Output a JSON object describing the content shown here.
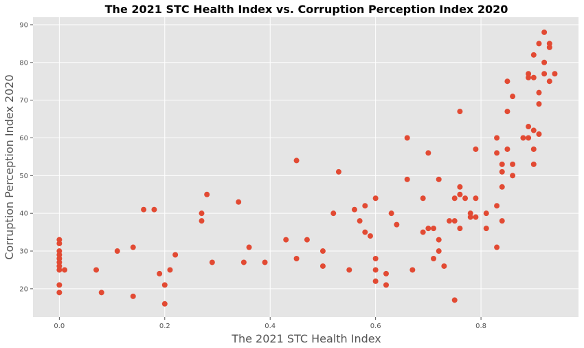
{
  "chart_data": {
    "type": "scatter",
    "title": "The 2021 STC Health Index vs. Corruption Perception Index 2020",
    "xlabel": "The 2021 STC Health Index",
    "ylabel": "Corruption Perception Index 2020",
    "xlim": [
      -0.05,
      0.985
    ],
    "ylim": [
      12.5,
      92
    ],
    "xticks": [
      0.0,
      0.2,
      0.4,
      0.6,
      0.8
    ],
    "xtick_labels": [
      "0.0",
      "0.2",
      "0.4",
      "0.6",
      "0.8"
    ],
    "yticks": [
      20,
      30,
      40,
      50,
      60,
      70,
      80,
      90
    ],
    "ytick_labels": [
      "20",
      "30",
      "40",
      "50",
      "60",
      "70",
      "80",
      "90"
    ],
    "grid": true,
    "style": "ggplot",
    "colors": {
      "marker": "#E24A33",
      "plot_bg": "#E5E5E5",
      "grid": "#FFFFFF",
      "figure_bg": "#FFFFFF"
    },
    "points": [
      [
        0.0,
        19
      ],
      [
        0.0,
        21
      ],
      [
        0.0,
        25
      ],
      [
        0.0,
        26
      ],
      [
        0.0,
        27
      ],
      [
        0.0,
        28
      ],
      [
        0.0,
        29
      ],
      [
        0.0,
        30
      ],
      [
        0.0,
        32
      ],
      [
        0.0,
        33
      ],
      [
        0.01,
        25
      ],
      [
        0.07,
        25
      ],
      [
        0.08,
        19
      ],
      [
        0.11,
        30
      ],
      [
        0.14,
        31
      ],
      [
        0.14,
        18
      ],
      [
        0.16,
        41
      ],
      [
        0.18,
        41
      ],
      [
        0.19,
        24
      ],
      [
        0.2,
        21
      ],
      [
        0.2,
        16
      ],
      [
        0.21,
        25
      ],
      [
        0.22,
        29
      ],
      [
        0.27,
        38
      ],
      [
        0.27,
        40
      ],
      [
        0.28,
        45
      ],
      [
        0.29,
        27
      ],
      [
        0.34,
        43
      ],
      [
        0.35,
        27
      ],
      [
        0.36,
        31
      ],
      [
        0.39,
        27
      ],
      [
        0.43,
        33
      ],
      [
        0.45,
        28
      ],
      [
        0.45,
        54
      ],
      [
        0.47,
        33
      ],
      [
        0.5,
        30
      ],
      [
        0.5,
        26
      ],
      [
        0.52,
        40
      ],
      [
        0.53,
        51
      ],
      [
        0.55,
        25
      ],
      [
        0.56,
        41
      ],
      [
        0.57,
        38
      ],
      [
        0.58,
        42
      ],
      [
        0.58,
        35
      ],
      [
        0.59,
        34
      ],
      [
        0.6,
        44
      ],
      [
        0.6,
        28
      ],
      [
        0.6,
        25
      ],
      [
        0.6,
        22
      ],
      [
        0.62,
        24
      ],
      [
        0.62,
        21
      ],
      [
        0.63,
        40
      ],
      [
        0.64,
        37
      ],
      [
        0.66,
        60
      ],
      [
        0.66,
        49
      ],
      [
        0.67,
        25
      ],
      [
        0.69,
        44
      ],
      [
        0.69,
        35
      ],
      [
        0.7,
        56
      ],
      [
        0.7,
        36
      ],
      [
        0.71,
        36
      ],
      [
        0.71,
        28
      ],
      [
        0.72,
        49
      ],
      [
        0.72,
        33
      ],
      [
        0.72,
        30
      ],
      [
        0.73,
        26
      ],
      [
        0.74,
        38
      ],
      [
        0.75,
        44
      ],
      [
        0.75,
        38
      ],
      [
        0.75,
        17
      ],
      [
        0.76,
        67
      ],
      [
        0.76,
        47
      ],
      [
        0.76,
        45
      ],
      [
        0.76,
        36
      ],
      [
        0.77,
        44
      ],
      [
        0.78,
        40
      ],
      [
        0.78,
        39
      ],
      [
        0.79,
        57
      ],
      [
        0.79,
        44
      ],
      [
        0.79,
        39
      ],
      [
        0.81,
        40
      ],
      [
        0.81,
        36
      ],
      [
        0.83,
        60
      ],
      [
        0.83,
        56
      ],
      [
        0.83,
        42
      ],
      [
        0.83,
        31
      ],
      [
        0.84,
        53
      ],
      [
        0.84,
        51
      ],
      [
        0.84,
        47
      ],
      [
        0.84,
        38
      ],
      [
        0.85,
        75
      ],
      [
        0.85,
        67
      ],
      [
        0.85,
        57
      ],
      [
        0.86,
        71
      ],
      [
        0.86,
        53
      ],
      [
        0.86,
        50
      ],
      [
        0.88,
        60
      ],
      [
        0.89,
        77
      ],
      [
        0.89,
        76
      ],
      [
        0.89,
        63
      ],
      [
        0.89,
        60
      ],
      [
        0.9,
        82
      ],
      [
        0.9,
        76
      ],
      [
        0.9,
        62
      ],
      [
        0.9,
        57
      ],
      [
        0.9,
        53
      ],
      [
        0.91,
        85
      ],
      [
        0.91,
        72
      ],
      [
        0.91,
        69
      ],
      [
        0.91,
        61
      ],
      [
        0.92,
        88
      ],
      [
        0.92,
        80
      ],
      [
        0.92,
        77
      ],
      [
        0.93,
        85
      ],
      [
        0.93,
        84
      ],
      [
        0.93,
        75
      ],
      [
        0.94,
        77
      ]
    ]
  }
}
